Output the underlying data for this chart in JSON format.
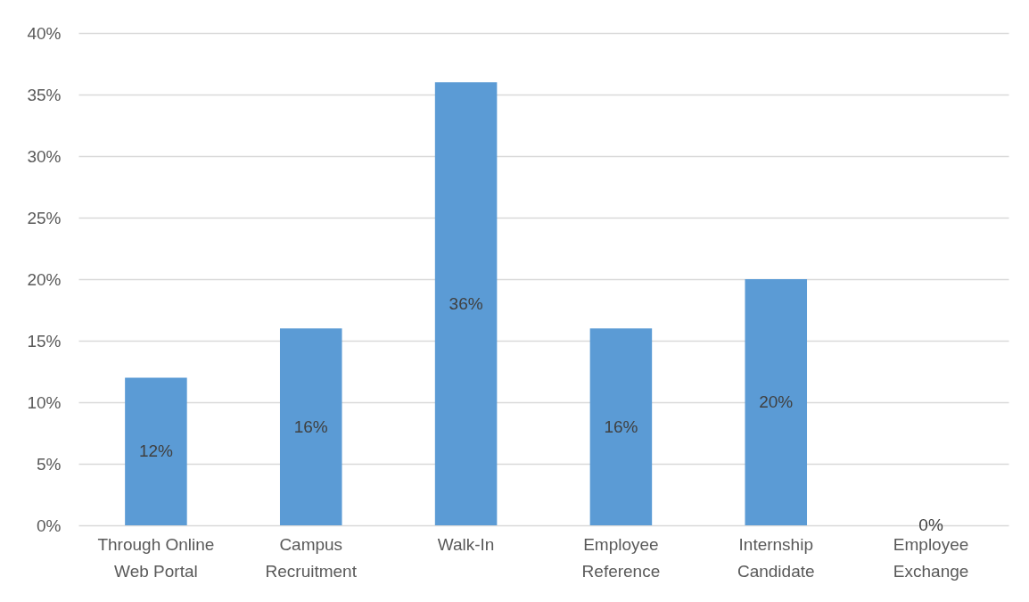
{
  "chart_data": {
    "type": "bar",
    "categories": [
      "Through Online Web Portal",
      "Campus Recruitment",
      "Walk-In",
      "Employee Reference",
      "Internship Candidate",
      "Employee Exchange"
    ],
    "values": [
      12,
      16,
      36,
      16,
      20,
      0
    ],
    "color": "#5b9bd5",
    "value_labels": [
      "12%",
      "16%",
      "36%",
      "16%",
      "20%",
      "0%"
    ],
    "ylim": [
      0,
      40
    ],
    "yticks": [
      {
        "value": 0,
        "label": "0%"
      },
      {
        "value": 5,
        "label": "5%"
      },
      {
        "value": 10,
        "label": "10%"
      },
      {
        "value": 15,
        "label": "15%"
      },
      {
        "value": 20,
        "label": "20%"
      },
      {
        "value": 25,
        "label": "25%"
      },
      {
        "value": 30,
        "label": "30%"
      },
      {
        "value": 35,
        "label": "35%"
      },
      {
        "value": 40,
        "label": "40%"
      }
    ],
    "grid": "y"
  }
}
